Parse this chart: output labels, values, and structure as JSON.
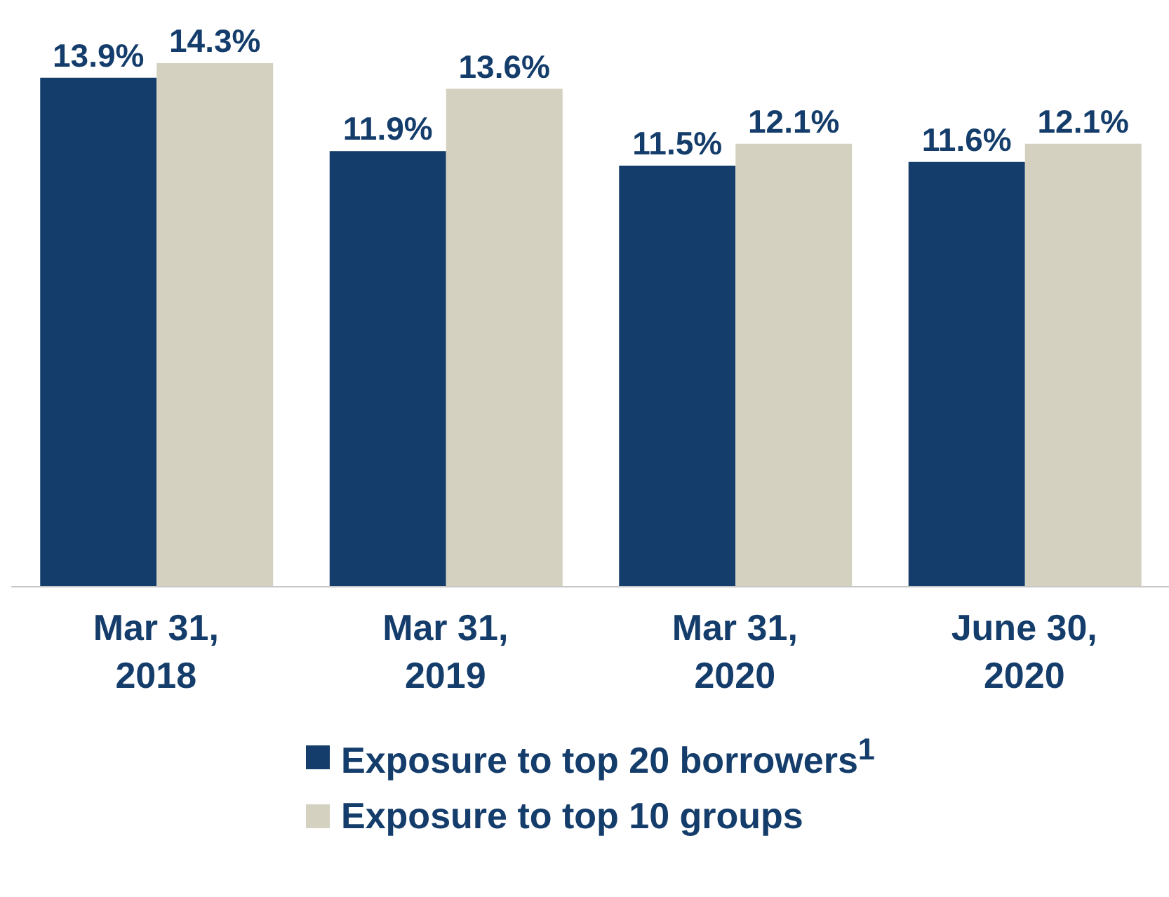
{
  "chart_data": {
    "type": "bar",
    "categories": [
      "Mar 31, 2018",
      "Mar 31, 2019",
      "Mar 31, 2020",
      "June 30, 2020"
    ],
    "series": [
      {
        "name": "Exposure to top 20 borrowers$^{1}$",
        "color": "#143d6b",
        "values": [
          13.9,
          11.9,
          11.5,
          11.6
        ],
        "value_labels": [
          "13.9%",
          "11.9%",
          "11.5%",
          "11.6%"
        ]
      },
      {
        "name": "Exposure to top 10 groups",
        "color": "#d4d1c0",
        "values": [
          14.3,
          13.6,
          12.1,
          12.1
        ],
        "value_labels": [
          "14.3%",
          "13.6%",
          "12.1%",
          "12.1%"
        ]
      }
    ],
    "legend": "bottom",
    "grid": false
  }
}
